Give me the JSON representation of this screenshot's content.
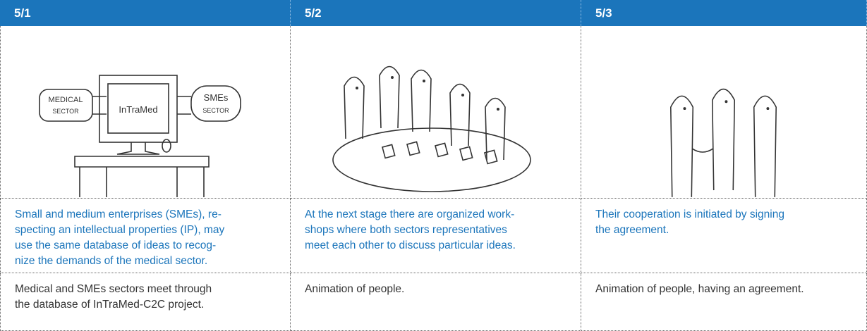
{
  "columns": [
    {
      "header": "5/1",
      "sketch_labels": [
        "MEDICAL",
        "SECTOR",
        "InTraMed",
        "SMEs",
        "SECTOR"
      ],
      "description": [
        "Small and medium enterprises (SMEs), re-",
        "specting an intellectual properties (IP),  may",
        "use the same database of ideas to recog-",
        "nize the demands of the medical sector."
      ],
      "note": [
        "Medical and SMEs sectors meet through",
        "the database of InTraMed-C2C project."
      ]
    },
    {
      "header": "5/2",
      "description": [
        "At the next stage there are organized work-",
        "shops where both sectors representatives",
        "meet each other to discuss particular ideas."
      ],
      "note": [
        "Animation of people."
      ]
    },
    {
      "header": "5/3",
      "description": [
        "Their cooperation is initiated by signing",
        "the agreement."
      ],
      "note": [
        "Animation of people, having an agreement."
      ]
    }
  ]
}
